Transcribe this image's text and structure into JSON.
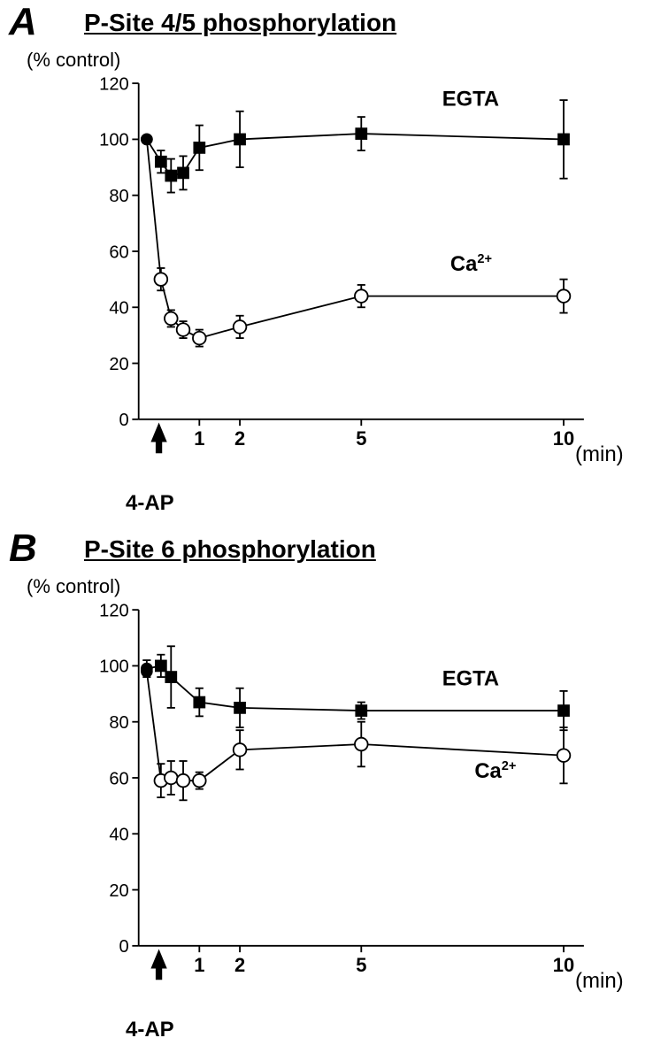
{
  "figure_width": 738,
  "figure_height": 1199,
  "background_color": "#ffffff",
  "panels": {
    "A": {
      "letter": "A",
      "title": "P-Site 4/5 phosphorylation",
      "y_axis_label": "(% control)",
      "x_axis_unit": "(min)",
      "arrow_label": "4-AP",
      "ylim": [
        0,
        120
      ],
      "ytick_step": 20,
      "yticks": [
        0,
        20,
        40,
        60,
        80,
        100,
        120
      ],
      "xticks": [
        1,
        2,
        5,
        10
      ],
      "xrange": [
        -0.5,
        10.5
      ],
      "series": {
        "egta": {
          "label": "EGTA",
          "label_x": 7.0,
          "label_y": 112,
          "marker": "square-filled",
          "color": "#000000",
          "points": [
            {
              "x": -0.3,
              "y": 100,
              "err": 0
            },
            {
              "x": 0.05,
              "y": 92,
              "err": 4
            },
            {
              "x": 0.3,
              "y": 87,
              "err": 6
            },
            {
              "x": 0.6,
              "y": 88,
              "err": 6
            },
            {
              "x": 1.0,
              "y": 97,
              "err": 8
            },
            {
              "x": 2.0,
              "y": 100,
              "err": 10
            },
            {
              "x": 5.0,
              "y": 102,
              "err": 6
            },
            {
              "x": 10.0,
              "y": 100,
              "err": 14
            }
          ]
        },
        "ca": {
          "label": "Ca",
          "label_sup": "2+",
          "label_x": 7.2,
          "label_y": 53,
          "marker": "circle-open",
          "color": "#000000",
          "points": [
            {
              "x": -0.3,
              "y": 100,
              "err": 0
            },
            {
              "x": 0.05,
              "y": 50,
              "err": 4
            },
            {
              "x": 0.3,
              "y": 36,
              "err": 3
            },
            {
              "x": 0.6,
              "y": 32,
              "err": 3
            },
            {
              "x": 1.0,
              "y": 29,
              "err": 3
            },
            {
              "x": 2.0,
              "y": 33,
              "err": 4
            },
            {
              "x": 5.0,
              "y": 44,
              "err": 4
            },
            {
              "x": 10.0,
              "y": 44,
              "err": 6
            }
          ]
        }
      }
    },
    "B": {
      "letter": "B",
      "title": "P-Site 6 phosphorylation",
      "y_axis_label": "(% control)",
      "x_axis_unit": "(min)",
      "arrow_label": "4-AP",
      "ylim": [
        0,
        120
      ],
      "ytick_step": 20,
      "yticks": [
        0,
        20,
        40,
        60,
        80,
        100,
        120
      ],
      "xticks": [
        1,
        2,
        5,
        10
      ],
      "xrange": [
        -0.5,
        10.5
      ],
      "series": {
        "egta": {
          "label": "EGTA",
          "label_x": 7.0,
          "label_y": 93,
          "marker": "square-filled",
          "color": "#000000",
          "points": [
            {
              "x": -0.3,
              "y": 99,
              "err": 3
            },
            {
              "x": 0.05,
              "y": 100,
              "err": 4
            },
            {
              "x": 0.3,
              "y": 96,
              "err": 11
            },
            {
              "x": 1.0,
              "y": 87,
              "err": 5
            },
            {
              "x": 2.0,
              "y": 85,
              "err": 7
            },
            {
              "x": 5.0,
              "y": 84,
              "err": 3
            },
            {
              "x": 10.0,
              "y": 84,
              "err": 7
            }
          ]
        },
        "ca": {
          "label": "Ca",
          "label_sup": "2+",
          "label_x": 7.8,
          "label_y": 60,
          "marker": "circle-open",
          "color": "#000000",
          "points": [
            {
              "x": -0.3,
              "y": 98,
              "err": 0
            },
            {
              "x": 0.05,
              "y": 59,
              "err": 6
            },
            {
              "x": 0.3,
              "y": 60,
              "err": 6
            },
            {
              "x": 0.6,
              "y": 59,
              "err": 7
            },
            {
              "x": 1.0,
              "y": 59,
              "err": 3
            },
            {
              "x": 2.0,
              "y": 70,
              "err": 7
            },
            {
              "x": 5.0,
              "y": 72,
              "err": 8
            },
            {
              "x": 10.0,
              "y": 68,
              "err": 10
            }
          ]
        }
      }
    }
  },
  "style": {
    "axis_color": "#000000",
    "line_width": 2,
    "marker_size": 8,
    "errorbar_cap": 6,
    "tick_fontsize": 22,
    "xtick_fontsize": 24,
    "title_fontsize": 28,
    "panel_letter_fontsize": 44,
    "series_label_fontsize": 26
  }
}
